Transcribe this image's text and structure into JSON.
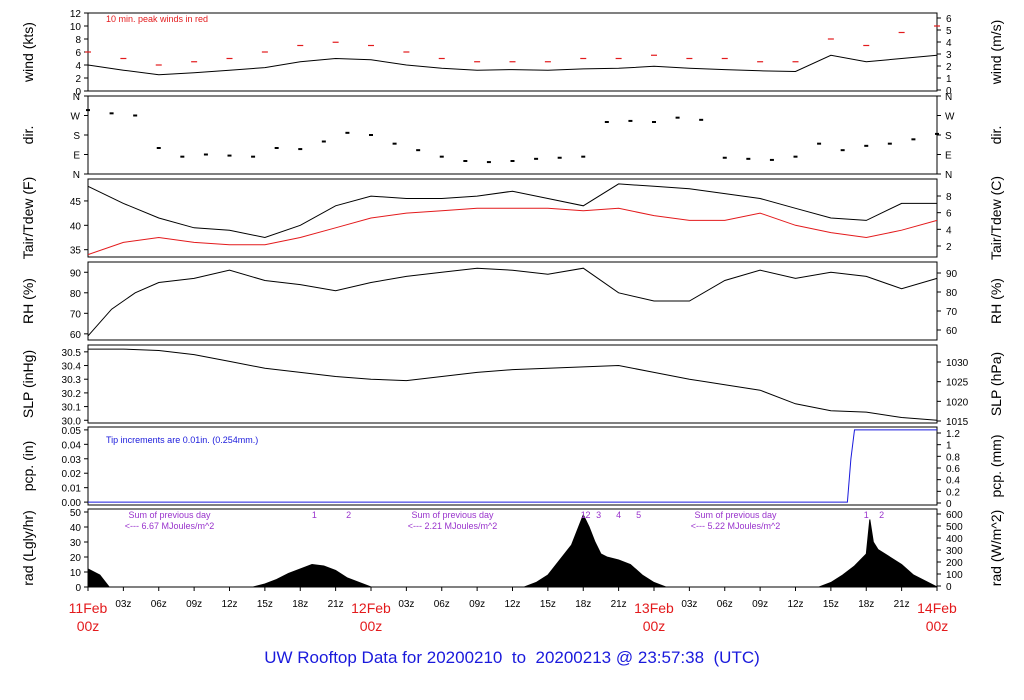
{
  "footer": {
    "title_prefix": "UW Rooftop Data for",
    "start": "20200210",
    "to": "to",
    "end": "20200213",
    "at": "@",
    "time": "23:57:38",
    "zone": "(UTC)"
  },
  "chart_data": [
    {
      "type": "line",
      "name": "wind",
      "ylabel": "wind (kts)",
      "ylabel_right": "wind (m/s)",
      "ylim": [
        0,
        12
      ],
      "yticks": [
        0,
        2,
        4,
        6,
        8,
        10,
        12
      ],
      "yticks_right": [
        0,
        1,
        2,
        3,
        4,
        5,
        6
      ],
      "annotation": "10 min. peak winds in red",
      "annotation_color": "#e31a1c",
      "series": [
        {
          "name": "",
          "color": "#000000",
          "x": [
            0,
            3,
            6,
            9,
            12,
            15,
            18,
            21,
            24,
            27,
            30,
            33,
            36,
            39,
            42,
            45,
            48,
            51,
            54,
            57,
            60,
            63,
            66,
            69,
            72
          ],
          "y": [
            4,
            3.2,
            2.5,
            2.8,
            3.2,
            3.6,
            4.5,
            5,
            4.8,
            4,
            3.5,
            3.2,
            3.3,
            3.2,
            3.4,
            3.5,
            3.8,
            3.5,
            3.3,
            3.1,
            3,
            5.5,
            4.5,
            5,
            5.5
          ]
        },
        {
          "name": "",
          "color": "#e31a1c",
          "x": [
            0,
            3,
            6,
            9,
            12,
            15,
            18,
            21,
            24,
            27,
            30,
            33,
            36,
            39,
            42,
            45,
            48,
            51,
            54,
            57,
            60,
            63,
            66,
            69,
            72
          ],
          "y": [
            6,
            5,
            4,
            4.5,
            5,
            6,
            7,
            7.5,
            7,
            6,
            5,
            4.5,
            4.5,
            4.5,
            5,
            5,
            5.5,
            5,
            5,
            4.5,
            4.5,
            8,
            7,
            9,
            10
          ]
        }
      ]
    },
    {
      "type": "scatter",
      "name": "dir",
      "ylabel": "dir.",
      "ylabel_right": "dir.",
      "ylim": [
        0,
        360
      ],
      "ytick_labels": [
        "N",
        "E",
        "S",
        "W",
        "N"
      ],
      "series": [
        {
          "name": "",
          "color": "#000000",
          "x": [
            0,
            2,
            4,
            6,
            8,
            10,
            12,
            14,
            16,
            18,
            20,
            22,
            24,
            26,
            28,
            30,
            32,
            34,
            36,
            38,
            40,
            42,
            44,
            46,
            48,
            50,
            52,
            54,
            56,
            58,
            60,
            62,
            64,
            66,
            68,
            70,
            72
          ],
          "y": [
            295,
            280,
            270,
            120,
            80,
            90,
            85,
            80,
            120,
            115,
            150,
            190,
            180,
            140,
            110,
            80,
            60,
            55,
            60,
            70,
            75,
            80,
            240,
            245,
            240,
            260,
            250,
            75,
            70,
            65,
            80,
            140,
            110,
            130,
            140,
            160,
            185
          ]
        }
      ]
    },
    {
      "type": "line",
      "name": "temp",
      "ylabel": "Tair/Tdew (F)",
      "ylabel_right": "Tair/Tdew (C)",
      "ylim": [
        33.5,
        49.5
      ],
      "yticks": [
        35,
        40,
        45
      ],
      "yticks_right": [
        2,
        4,
        6,
        8
      ],
      "series": [
        {
          "name": "",
          "color": "#000000",
          "x": [
            0,
            3,
            6,
            9,
            12,
            15,
            18,
            21,
            24,
            27,
            30,
            33,
            36,
            39,
            42,
            45,
            48,
            51,
            54,
            57,
            60,
            63,
            66,
            69,
            72
          ],
          "y": [
            48,
            44.5,
            41.5,
            39.5,
            39,
            37.5,
            40,
            44,
            46,
            45.5,
            45.5,
            46,
            47,
            45.5,
            44,
            48.5,
            48,
            47.5,
            46.5,
            45.5,
            43.5,
            41.5,
            41,
            44.5,
            44.5
          ]
        },
        {
          "name": "",
          "color": "#e31a1c",
          "x": [
            0,
            3,
            6,
            9,
            12,
            15,
            18,
            21,
            24,
            27,
            30,
            33,
            36,
            39,
            42,
            45,
            48,
            51,
            54,
            57,
            60,
            63,
            66,
            69,
            72
          ],
          "y": [
            34,
            36.5,
            37.5,
            36.5,
            36,
            36,
            37.5,
            39.5,
            41.5,
            42.5,
            43,
            43.5,
            43.5,
            43.5,
            43,
            43.5,
            42,
            41,
            41,
            42.5,
            40,
            38.5,
            37.5,
            39,
            41
          ]
        }
      ]
    },
    {
      "type": "line",
      "name": "rh",
      "ylabel": "RH (%)",
      "ylabel_right": "RH (%)",
      "ylim": [
        57,
        95
      ],
      "yticks": [
        60,
        70,
        80,
        90
      ],
      "yticks_right": [
        60,
        70,
        80,
        90
      ],
      "series": [
        {
          "name": "",
          "color": "#000000",
          "x": [
            0,
            2,
            4,
            6,
            9,
            12,
            15,
            18,
            21,
            24,
            27,
            30,
            33,
            36,
            39,
            42,
            45,
            48,
            51,
            54,
            57,
            60,
            63,
            66,
            69,
            72
          ],
          "y": [
            59,
            72,
            80,
            85,
            87,
            91,
            86,
            84,
            81,
            85,
            88,
            90,
            92,
            91,
            89,
            92,
            80,
            76,
            76,
            86,
            91,
            87,
            90,
            88,
            82,
            87
          ]
        }
      ]
    },
    {
      "type": "line",
      "name": "slp",
      "ylabel": "SLP (inHg)",
      "ylabel_right": "SLP (hPa)",
      "ylim": [
        29.98,
        30.55
      ],
      "yticks": [
        30.0,
        30.1,
        30.2,
        30.3,
        30.4,
        30.5
      ],
      "ytick_labels": [
        "30.0",
        "30.1",
        "30.2",
        "30.3",
        "30.4",
        "30.5"
      ],
      "yticks_right": [
        1015,
        1020,
        1025,
        1030
      ],
      "series": [
        {
          "name": "",
          "color": "#000000",
          "x": [
            0,
            3,
            6,
            9,
            12,
            15,
            18,
            21,
            24,
            27,
            30,
            33,
            36,
            39,
            42,
            45,
            48,
            51,
            54,
            57,
            60,
            63,
            66,
            69,
            72
          ],
          "y": [
            30.52,
            30.52,
            30.51,
            30.48,
            30.43,
            30.38,
            30.35,
            30.32,
            30.3,
            30.29,
            30.32,
            30.35,
            30.37,
            30.38,
            30.39,
            30.4,
            30.35,
            30.3,
            30.26,
            30.22,
            30.12,
            30.07,
            30.06,
            30.02,
            30.0
          ]
        }
      ]
    },
    {
      "type": "line",
      "name": "pcp",
      "ylabel": "pcp. (in)",
      "ylabel_right": "pcp. (mm)",
      "ylim": [
        -0.002,
        0.052
      ],
      "yticks": [
        0.0,
        0.01,
        0.02,
        0.03,
        0.04,
        0.05
      ],
      "ytick_labels": [
        "0.00",
        "0.01",
        "0.02",
        "0.03",
        "0.04",
        "0.05"
      ],
      "yticks_right": [
        0,
        0.2,
        0.4,
        0.6,
        0.8,
        1,
        1.2
      ],
      "annotation": "Tip increments are 0.01in. (0.254mm.)",
      "annotation_color": "#1a1adc",
      "series": [
        {
          "name": "",
          "color": "#1a1adc",
          "x": [
            0,
            64.4,
            64.7,
            65.0,
            72
          ],
          "y": [
            0,
            0,
            0.03,
            0.05,
            0.05
          ]
        }
      ]
    },
    {
      "type": "area",
      "name": "rad",
      "ylabel": "rad (Lgly/hr)",
      "ylabel_right": "rad (W/m^2)",
      "ylim": [
        0,
        52
      ],
      "yticks": [
        0,
        10,
        20,
        30,
        40,
        50
      ],
      "yticks_right": [
        0,
        100,
        200,
        300,
        400,
        500,
        600
      ],
      "color": "#000000",
      "annotation_color": "#9933cc",
      "day_sums": [
        {
          "line1": "Sum of previous day",
          "line2": "<--- 6.67 MJoules/m^2"
        },
        {
          "line1": "Sum of previous day",
          "line2": "<--- 2.21 MJoules/m^2"
        },
        {
          "line1": "Sum of previous day",
          "line2": "<--- 5.22 MJoules/m^2"
        }
      ],
      "markers": [
        {
          "x": 19.2,
          "label": "1"
        },
        {
          "x": 22.1,
          "label": "2"
        },
        {
          "x": 42.0,
          "label": "1"
        },
        {
          "x": 42.4,
          "label": "2"
        },
        {
          "x": 43.3,
          "label": "3"
        },
        {
          "x": 45.0,
          "label": "4"
        },
        {
          "x": 46.7,
          "label": "5"
        },
        {
          "x": 66.0,
          "label": "1"
        },
        {
          "x": 67.3,
          "label": "2"
        }
      ],
      "x": [
        0,
        1,
        1.8,
        14,
        15,
        16,
        17,
        18,
        19,
        20,
        21,
        22,
        23,
        24,
        37,
        38,
        39,
        40,
        41,
        42,
        42.5,
        43,
        43.5,
        44,
        45,
        46,
        47,
        48,
        49,
        62,
        63,
        64,
        65,
        66,
        66.3,
        66.6,
        67,
        68,
        69,
        70,
        72
      ],
      "y": [
        12,
        8,
        0,
        0,
        2,
        5,
        9,
        12,
        15,
        14,
        11,
        6,
        3,
        0,
        0,
        3,
        8,
        18,
        28,
        48,
        40,
        30,
        22,
        20,
        18,
        15,
        8,
        3,
        0,
        0,
        3,
        8,
        14,
        22,
        45,
        30,
        25,
        20,
        15,
        8,
        0
      ]
    }
  ],
  "x_axis": {
    "ticks": [
      0,
      3,
      6,
      9,
      12,
      15,
      18,
      21,
      24,
      27,
      30,
      33,
      36,
      39,
      42,
      45,
      48,
      51,
      54,
      57,
      60,
      63,
      66,
      69,
      72
    ],
    "labels": [
      "",
      "03z",
      "06z",
      "09z",
      "12z",
      "15z",
      "18z",
      "21z",
      "",
      "03z",
      "06z",
      "09z",
      "12z",
      "15z",
      "18z",
      "21z",
      "",
      "03z",
      "06z",
      "09z",
      "12z",
      "15z",
      "18z",
      "21z",
      ""
    ],
    "day_labels": [
      {
        "x": 0,
        "date": "11Feb",
        "time": "00z"
      },
      {
        "x": 24,
        "date": "12Feb",
        "time": "00z"
      },
      {
        "x": 48,
        "date": "13Feb",
        "time": "00z"
      },
      {
        "x": 72,
        "date": "14Feb",
        "time": "00z"
      }
    ],
    "day_label_color": "#e31a1c"
  }
}
